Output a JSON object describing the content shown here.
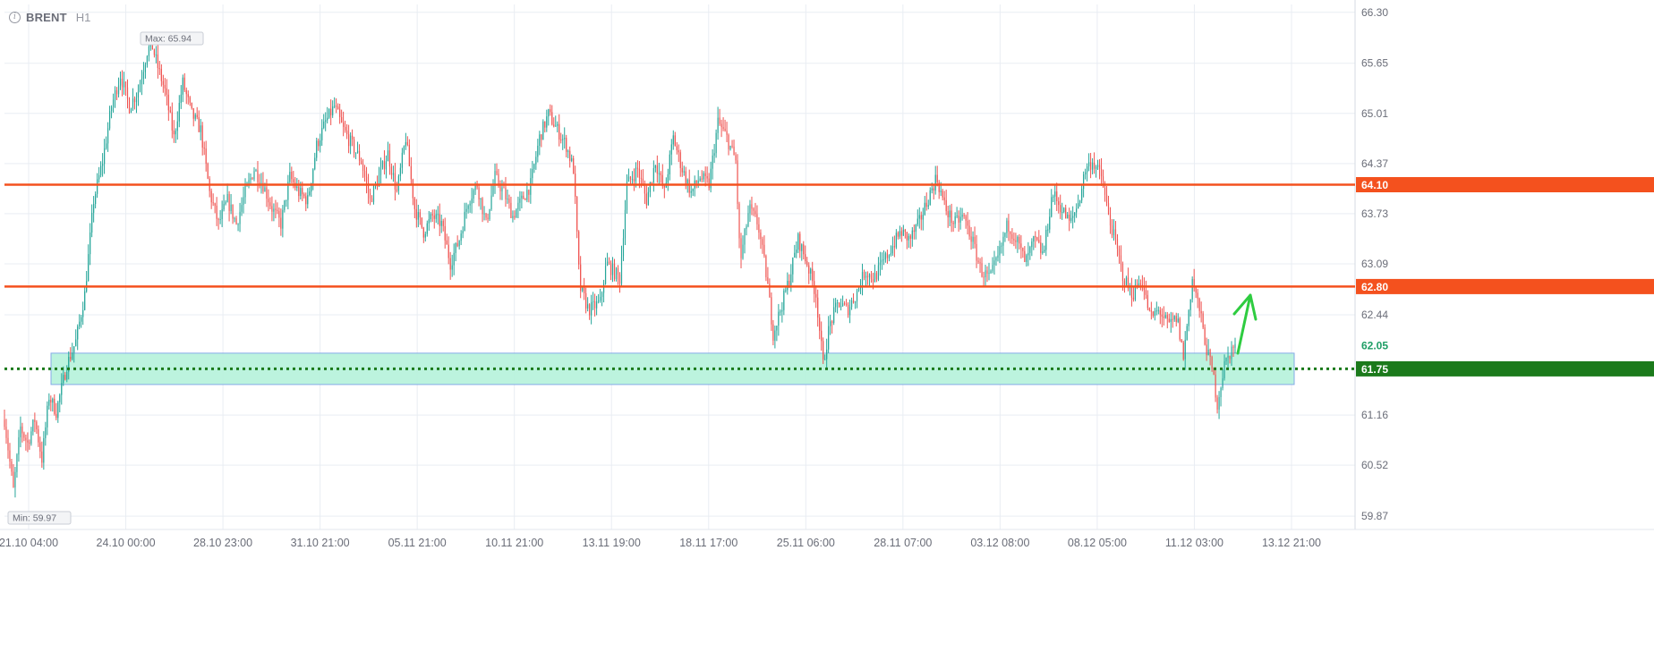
{
  "header": {
    "symbol": "BRENT",
    "timeframe": "H1",
    "info_icon": "info-icon"
  },
  "chart_data": {
    "type": "candlestick",
    "symbol": "BRENT",
    "timeframe": "H1",
    "y_ticks": [
      "66.30",
      "65.65",
      "65.01",
      "64.37",
      "63.73",
      "63.09",
      "62.44",
      "61.16",
      "60.52",
      "59.87"
    ],
    "ylim": [
      59.7,
      66.4
    ],
    "x_ticks": [
      "21.10 04:00",
      "24.10 00:00",
      "28.10 23:00",
      "31.10 21:00",
      "05.11 21:00",
      "10.11 21:00",
      "13.11 19:00",
      "18.11 17:00",
      "25.11 06:00",
      "28.11 07:00",
      "03.12 08:00",
      "08.12 05:00",
      "11.12 03:00",
      "13.12 21:00"
    ],
    "max_label": "Max: 65.94",
    "min_label": "Min: 59.97",
    "max_value": 65.94,
    "min_value": 59.97,
    "current_price": "62.05",
    "current_value": 62.05,
    "levels": [
      {
        "value": 64.1,
        "label": "64.10",
        "color": "#f4511e",
        "style": "solid"
      },
      {
        "value": 62.8,
        "label": "62.80",
        "color": "#f4511e",
        "style": "solid"
      },
      {
        "value": 61.75,
        "label": "61.75",
        "color": "#1b7a1b",
        "style": "dotted"
      }
    ],
    "zone": {
      "from": 61.55,
      "to": 61.95,
      "color": "#b9f3dd",
      "border": "#7fa6e6"
    },
    "arrow": {
      "color": "#2ecc40",
      "direction": "up"
    },
    "up_color": "#26a69a",
    "down_color": "#ef5350",
    "price_path": [
      [
        0,
        61.1
      ],
      [
        10,
        60.2
      ],
      [
        18,
        61.0
      ],
      [
        26,
        60.8
      ],
      [
        34,
        61.1
      ],
      [
        42,
        60.6
      ],
      [
        50,
        61.4
      ],
      [
        58,
        61.2
      ],
      [
        70,
        61.8
      ],
      [
        80,
        62.1
      ],
      [
        90,
        62.7
      ],
      [
        100,
        63.9
      ],
      [
        110,
        64.4
      ],
      [
        120,
        65.1
      ],
      [
        130,
        65.5
      ],
      [
        140,
        65.1
      ],
      [
        150,
        65.3
      ],
      [
        160,
        65.8
      ],
      [
        165,
        65.9
      ],
      [
        172,
        65.6
      ],
      [
        180,
        65.3
      ],
      [
        190,
        64.7
      ],
      [
        200,
        65.4
      ],
      [
        210,
        65.0
      ],
      [
        220,
        64.8
      ],
      [
        230,
        64.0
      ],
      [
        240,
        63.6
      ],
      [
        250,
        63.9
      ],
      [
        260,
        63.6
      ],
      [
        270,
        64.0
      ],
      [
        280,
        64.3
      ],
      [
        290,
        64.1
      ],
      [
        300,
        63.8
      ],
      [
        310,
        63.6
      ],
      [
        320,
        64.2
      ],
      [
        330,
        64.0
      ],
      [
        340,
        63.9
      ],
      [
        350,
        64.6
      ],
      [
        360,
        64.9
      ],
      [
        370,
        65.1
      ],
      [
        380,
        64.8
      ],
      [
        390,
        64.6
      ],
      [
        400,
        64.4
      ],
      [
        410,
        63.9
      ],
      [
        420,
        64.2
      ],
      [
        430,
        64.5
      ],
      [
        440,
        64.0
      ],
      [
        450,
        64.7
      ],
      [
        460,
        63.8
      ],
      [
        470,
        63.5
      ],
      [
        480,
        63.7
      ],
      [
        490,
        63.6
      ],
      [
        500,
        63.1
      ],
      [
        510,
        63.4
      ],
      [
        520,
        63.9
      ],
      [
        530,
        64.1
      ],
      [
        540,
        63.6
      ],
      [
        550,
        64.2
      ],
      [
        560,
        64.0
      ],
      [
        570,
        63.7
      ],
      [
        580,
        63.9
      ],
      [
        590,
        64.1
      ],
      [
        600,
        64.7
      ],
      [
        610,
        65.0
      ],
      [
        620,
        64.8
      ],
      [
        630,
        64.6
      ],
      [
        638,
        64.3
      ],
      [
        645,
        62.8
      ],
      [
        655,
        62.5
      ],
      [
        668,
        62.6
      ],
      [
        675,
        63.1
      ],
      [
        690,
        62.9
      ],
      [
        698,
        64.1
      ],
      [
        710,
        64.3
      ],
      [
        720,
        63.9
      ],
      [
        730,
        64.4
      ],
      [
        740,
        64.0
      ],
      [
        750,
        64.7
      ],
      [
        760,
        64.3
      ],
      [
        770,
        64.0
      ],
      [
        780,
        64.2
      ],
      [
        790,
        64.1
      ],
      [
        800,
        64.9
      ],
      [
        810,
        64.7
      ],
      [
        820,
        64.4
      ],
      [
        825,
        63.1
      ],
      [
        835,
        63.8
      ],
      [
        845,
        63.6
      ],
      [
        855,
        62.9
      ],
      [
        862,
        62.2
      ],
      [
        870,
        62.5
      ],
      [
        880,
        62.9
      ],
      [
        890,
        63.4
      ],
      [
        900,
        63.1
      ],
      [
        910,
        62.7
      ],
      [
        918,
        61.8
      ],
      [
        925,
        62.3
      ],
      [
        935,
        62.6
      ],
      [
        945,
        62.5
      ],
      [
        955,
        62.7
      ],
      [
        965,
        63.0
      ],
      [
        975,
        62.9
      ],
      [
        985,
        63.1
      ],
      [
        995,
        63.3
      ],
      [
        1005,
        63.5
      ],
      [
        1015,
        63.4
      ],
      [
        1025,
        63.6
      ],
      [
        1035,
        63.9
      ],
      [
        1045,
        64.2
      ],
      [
        1055,
        63.8
      ],
      [
        1065,
        63.6
      ],
      [
        1075,
        63.7
      ],
      [
        1085,
        63.4
      ],
      [
        1095,
        63.0
      ],
      [
        1105,
        62.9
      ],
      [
        1115,
        63.2
      ],
      [
        1125,
        63.6
      ],
      [
        1135,
        63.4
      ],
      [
        1145,
        63.1
      ],
      [
        1155,
        63.4
      ],
      [
        1165,
        63.2
      ],
      [
        1175,
        64.0
      ],
      [
        1185,
        63.8
      ],
      [
        1195,
        63.6
      ],
      [
        1205,
        63.9
      ],
      [
        1212,
        64.3
      ],
      [
        1220,
        64.4
      ],
      [
        1230,
        64.2
      ],
      [
        1238,
        63.7
      ],
      [
        1245,
        63.4
      ],
      [
        1255,
        62.9
      ],
      [
        1265,
        62.7
      ],
      [
        1275,
        62.9
      ],
      [
        1285,
        62.4
      ],
      [
        1295,
        62.5
      ],
      [
        1305,
        62.3
      ],
      [
        1315,
        62.4
      ],
      [
        1322,
        61.9
      ],
      [
        1332,
        62.9
      ],
      [
        1340,
        62.5
      ],
      [
        1348,
        62.0
      ],
      [
        1355,
        61.7
      ],
      [
        1360,
        61.3
      ],
      [
        1368,
        61.8
      ],
      [
        1376,
        62.0
      ],
      [
        1380,
        62.05
      ]
    ]
  }
}
